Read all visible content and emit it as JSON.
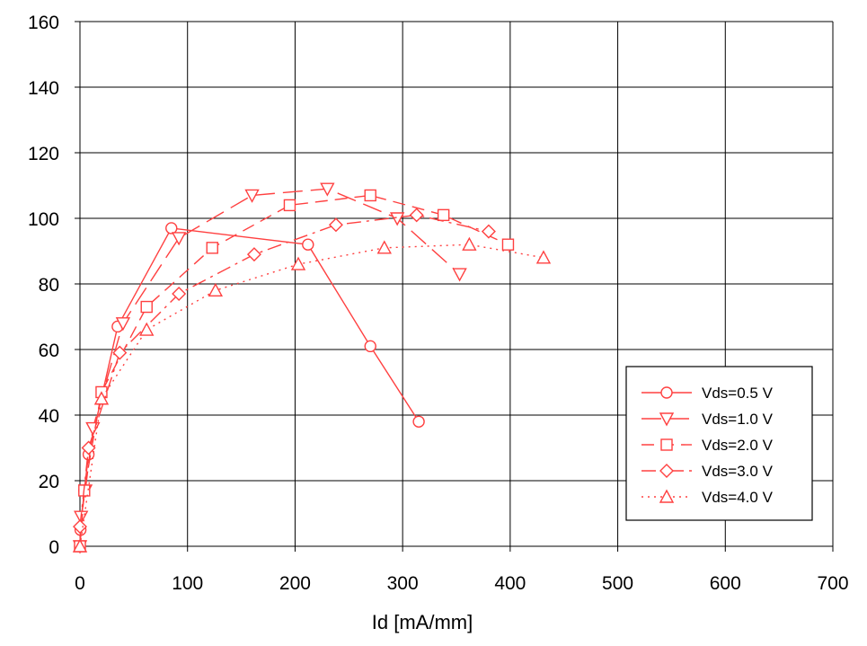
{
  "chart_data": {
    "type": "line",
    "title": "",
    "xlabel": "Id [mA/mm]",
    "ylabel": "",
    "xlim": [
      0,
      700
    ],
    "ylim": [
      0,
      160
    ],
    "x_ticks": [
      "0",
      "100",
      "200",
      "300",
      "400",
      "500",
      "600",
      "700"
    ],
    "y_ticks": [
      "0",
      "20",
      "40",
      "60",
      "80",
      "100",
      "120",
      "140",
      "160"
    ],
    "grid": true,
    "legend_position": "right",
    "color": "#ff4040",
    "series": [
      {
        "name": "Vds=0.5 V",
        "marker": "circle",
        "dash": "solid",
        "points": [
          [
            0,
            0
          ],
          [
            0.5,
            5
          ],
          [
            4,
            17
          ],
          [
            8,
            28
          ],
          [
            35,
            67
          ],
          [
            85,
            97
          ],
          [
            212,
            92
          ],
          [
            270,
            61
          ],
          [
            315,
            38
          ]
        ]
      },
      {
        "name": "Vds=1.0 V",
        "marker": "triangle-down",
        "dash": "long-dash",
        "points": [
          [
            0,
            0
          ],
          [
            1,
            9
          ],
          [
            5,
            17
          ],
          [
            12,
            36
          ],
          [
            40,
            68
          ],
          [
            92,
            94
          ],
          [
            160,
            107
          ],
          [
            230,
            109
          ],
          [
            295,
            100
          ],
          [
            353,
            83
          ]
        ]
      },
      {
        "name": "Vds=2.0 V",
        "marker": "square",
        "dash": "dash",
        "points": [
          [
            0,
            0
          ],
          [
            4,
            17
          ],
          [
            20,
            47
          ],
          [
            62,
            73
          ],
          [
            123,
            91
          ],
          [
            195,
            104
          ],
          [
            270,
            107
          ],
          [
            338,
            101
          ],
          [
            398,
            92
          ]
        ]
      },
      {
        "name": "Vds=3.0 V",
        "marker": "diamond",
        "dash": "dash-dot",
        "points": [
          [
            0,
            6
          ],
          [
            8,
            30
          ],
          [
            37,
            59
          ],
          [
            92,
            77
          ],
          [
            162,
            89
          ],
          [
            238,
            98
          ],
          [
            313,
            101
          ],
          [
            380,
            96
          ]
        ]
      },
      {
        "name": "Vds=4.0 V",
        "marker": "triangle-up",
        "dash": "dotted",
        "points": [
          [
            0,
            0
          ],
          [
            20,
            45
          ],
          [
            62,
            66
          ],
          [
            126,
            78
          ],
          [
            203,
            86
          ],
          [
            283,
            91
          ],
          [
            362,
            92
          ],
          [
            431,
            88
          ]
        ]
      }
    ]
  }
}
